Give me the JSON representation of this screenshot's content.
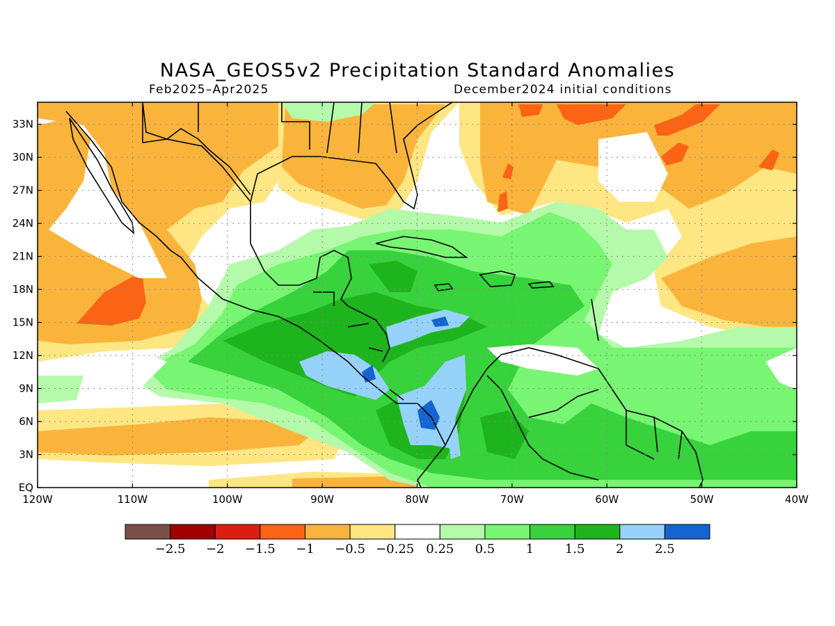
{
  "title": "NASA_GEOS5v2 Precipitation Standard Anomalies",
  "subtitle_left": "Feb2025–Apr2025",
  "subtitle_right": "December2024 initial conditions",
  "map": {
    "lon_range": [
      -120,
      -40
    ],
    "lat_range": [
      0,
      35
    ],
    "lat_ticks": [
      {
        "value": 33,
        "label": "33N"
      },
      {
        "value": 30,
        "label": "30N"
      },
      {
        "value": 27,
        "label": "27N"
      },
      {
        "value": 24,
        "label": "24N"
      },
      {
        "value": 21,
        "label": "21N"
      },
      {
        "value": 18,
        "label": "18N"
      },
      {
        "value": 15,
        "label": "15N"
      },
      {
        "value": 12,
        "label": "12N"
      },
      {
        "value": 9,
        "label": "9N"
      },
      {
        "value": 6,
        "label": "6N"
      },
      {
        "value": 3,
        "label": "3N"
      },
      {
        "value": 0,
        "label": "EQ"
      }
    ],
    "lon_ticks": [
      {
        "value": -120,
        "label": "120W"
      },
      {
        "value": -110,
        "label": "110W"
      },
      {
        "value": -100,
        "label": "100W"
      },
      {
        "value": -90,
        "label": "90W"
      },
      {
        "value": -80,
        "label": "80W"
      },
      {
        "value": -70,
        "label": "70W"
      },
      {
        "value": -60,
        "label": "60W"
      },
      {
        "value": -50,
        "label": "50W"
      },
      {
        "value": -40,
        "label": "40W"
      }
    ],
    "grid": "dotted"
  },
  "colorbar": {
    "colors": [
      "#7a5048",
      "#a00000",
      "#dc1e12",
      "#fa6414",
      "#fab43c",
      "#fee682",
      "#ffffff",
      "#b4faaa",
      "#78f573",
      "#37d23c",
      "#1eb41e",
      "#96d2fa",
      "#1464d2"
    ],
    "labels": [
      "−2.5",
      "−2",
      "−1.5",
      "−1",
      "−0.5",
      "−0.25",
      "0.25",
      "0.5",
      "1",
      "1.5",
      "2",
      "2.5"
    ]
  },
  "colors": {
    "orange": "#fab43c",
    "yellow": "#fee682",
    "darkorange": "#fa6414",
    "lightgreen": "#b4faaa",
    "green": "#78f573",
    "midgreen": "#37d23c",
    "darkgreen": "#1eb41e",
    "lightblue": "#96d2fa",
    "blue": "#1464d2"
  }
}
